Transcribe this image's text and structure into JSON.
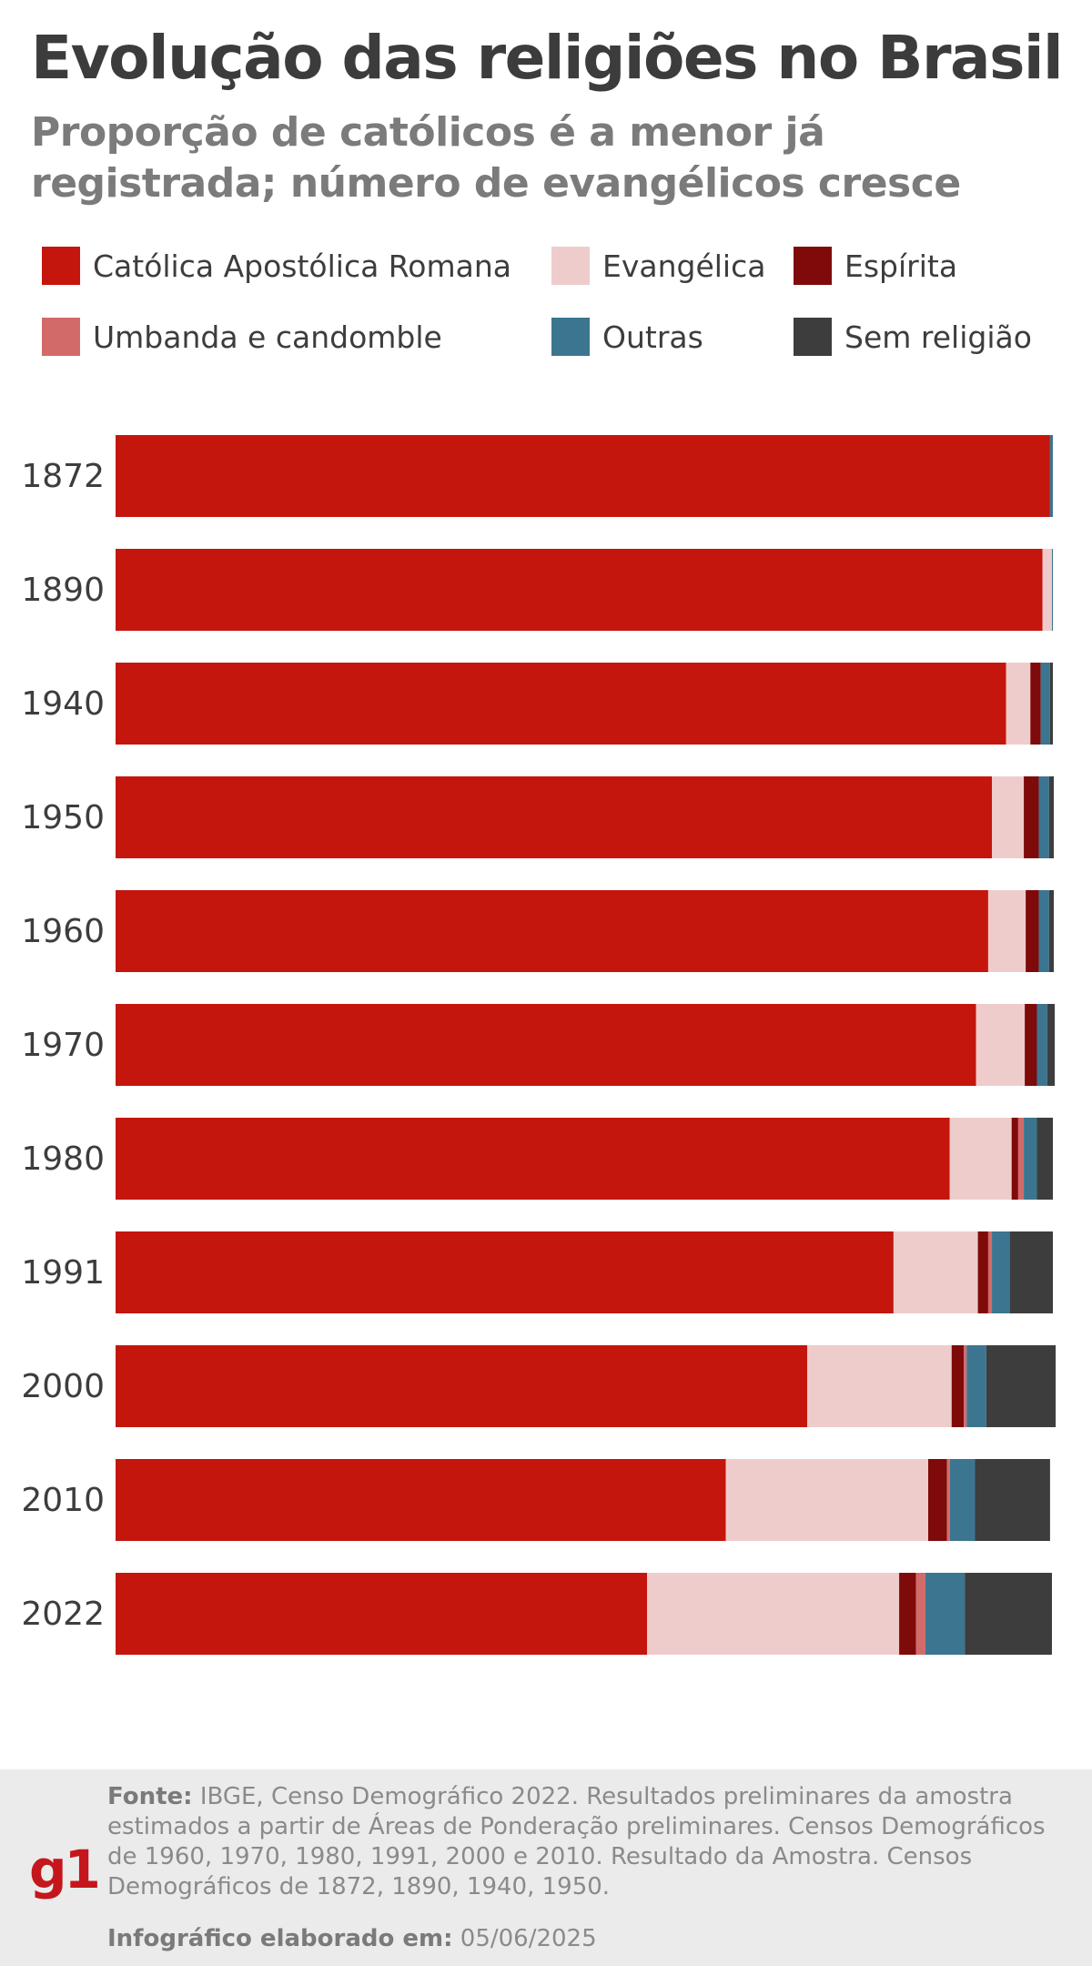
{
  "header": {
    "title": "Evolução das religiões no Brasil",
    "subtitle": "Proporção de católicos é a menor já registrada; número de evangélicos cresce"
  },
  "legend": [
    {
      "label": "Católica Apostólica Romana",
      "color": "#c4160d"
    },
    {
      "label": "Evangélica",
      "color": "#efcccc"
    },
    {
      "label": "Espírita",
      "color": "#7e0a0a"
    },
    {
      "label": "Umbanda e candomble",
      "color": "#d36a6a"
    },
    {
      "label": "Outras",
      "color": "#3c7590"
    },
    {
      "label": "Sem religião",
      "color": "#3d3d3d"
    }
  ],
  "chart_data": {
    "type": "bar",
    "orientation": "horizontal",
    "stacked": true,
    "xlim": [
      0,
      100
    ],
    "categories": [
      "1872",
      "1890",
      "1940",
      "1950",
      "1960",
      "1970",
      "1980",
      "1991",
      "2000",
      "2010",
      "2022"
    ],
    "series": [
      {
        "name": "Católica Apostólica Romana",
        "color": "#c4160d",
        "values": [
          99.7,
          98.9,
          95.0,
          93.5,
          93.1,
          91.8,
          89.0,
          83.0,
          73.8,
          65.1,
          56.7
        ]
      },
      {
        "name": "Evangélica",
        "color": "#efcccc",
        "values": [
          0.0,
          1.0,
          2.6,
          3.4,
          4.0,
          5.2,
          6.6,
          9.0,
          15.4,
          21.6,
          26.9
        ]
      },
      {
        "name": "Espírita",
        "color": "#7e0a0a",
        "values": [
          0.0,
          0.0,
          1.1,
          1.6,
          1.4,
          1.3,
          0.7,
          1.1,
          1.3,
          2.0,
          1.8
        ]
      },
      {
        "name": "Umbanda e candomble",
        "color": "#d36a6a",
        "values": [
          0.0,
          0.0,
          0.0,
          0.0,
          0.0,
          0.0,
          0.6,
          0.4,
          0.3,
          0.3,
          1.0
        ]
      },
      {
        "name": "Outras",
        "color": "#3c7590",
        "values": [
          0.3,
          0.1,
          1.0,
          1.1,
          1.1,
          1.1,
          1.4,
          1.9,
          2.1,
          2.7,
          4.2
        ]
      },
      {
        "name": "Sem religião",
        "color": "#3d3d3d",
        "values": [
          0.0,
          0.0,
          0.3,
          0.5,
          0.5,
          0.8,
          1.7,
          4.6,
          7.4,
          8.0,
          9.3
        ]
      }
    ]
  },
  "footer": {
    "logo": "g1",
    "source_label": "Fonte:",
    "source_text": "IBGE, Censo Demográfico 2022. Resultados preliminares da amostra estimados a partir de Áreas de Ponderação preliminares. Censos Demográficos de 1960, 1970, 1980, 1991, 2000 e 2010. Resultado da Amostra. Censos Demográficos de 1872, 1890, 1940, 1950.",
    "made_label": "Infográfico elaborado em:",
    "made_date": "05/06/2025"
  }
}
